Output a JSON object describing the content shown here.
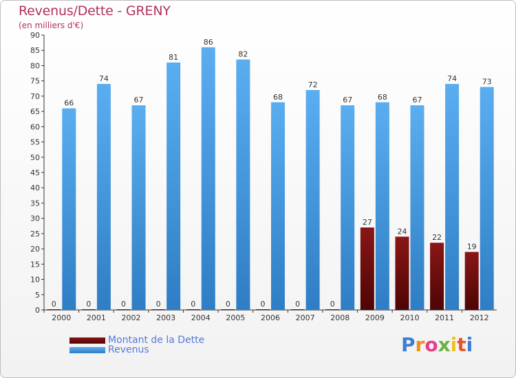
{
  "header": {
    "title": "Revenus/Dette - GRENY",
    "subtitle": "(en milliers d'€)"
  },
  "chart_data": {
    "type": "bar",
    "categories": [
      "2000",
      "2001",
      "2002",
      "2003",
      "2004",
      "2005",
      "2006",
      "2007",
      "2008",
      "2009",
      "2010",
      "2011",
      "2012"
    ],
    "series": [
      {
        "name": "Montant de la Dette",
        "color": "#6b0a0a",
        "values": [
          0,
          0,
          0,
          0,
          0,
          0,
          0,
          0,
          0,
          27,
          24,
          22,
          19
        ]
      },
      {
        "name": "Revenus",
        "color": "#4f9fe0",
        "values": [
          66,
          74,
          67,
          81,
          86,
          82,
          68,
          72,
          67,
          68,
          67,
          74,
          73
        ]
      }
    ],
    "ylim": [
      0,
      90
    ],
    "ytick_step": 5,
    "grid": false,
    "legend_position": "bottom-left"
  },
  "legend": {
    "items": [
      {
        "label": "Montant de la Dette",
        "color": "#6b0a0a"
      },
      {
        "label": "Revenus",
        "color": "#4f9fe0"
      }
    ]
  },
  "logo": {
    "letters": [
      "P",
      "r",
      "o",
      "x",
      "i",
      "t",
      "i"
    ],
    "colors": [
      "#3b7fd4",
      "#f28c1a",
      "#e83e8c",
      "#6cb33f",
      "#f2c21a",
      "#e8542a",
      "#3b7fd4"
    ]
  }
}
